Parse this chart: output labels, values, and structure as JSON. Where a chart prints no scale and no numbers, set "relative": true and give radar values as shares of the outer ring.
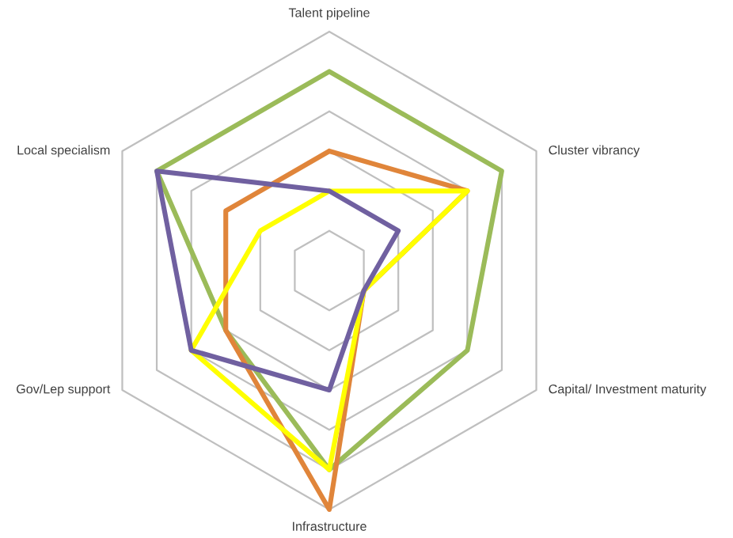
{
  "chart_data": {
    "type": "radar",
    "relative": true,
    "grid": true,
    "categories": [
      "Talent pipeline",
      "Cluster vibrancy",
      "Capital/ Investment maturity",
      "Infrastructure",
      "Gov/Lep support",
      "Local specialism"
    ],
    "series": [
      {
        "color": "#9bbb59",
        "values": [
          0.833,
          0.833,
          0.667,
          0.833,
          0.5,
          0.833
        ]
      },
      {
        "color": "#e0853a",
        "values": [
          0.5,
          0.667,
          0.167,
          1,
          0.5,
          0.5
        ]
      },
      {
        "color": "#ffff00",
        "values": [
          0.333,
          0.667,
          0.167,
          0.833,
          0.667,
          0.333
        ]
      },
      {
        "color": "#7060a0",
        "values": [
          0.333,
          0.333,
          0.167,
          0.5,
          0.667,
          0.833
        ]
      }
    ]
  }
}
